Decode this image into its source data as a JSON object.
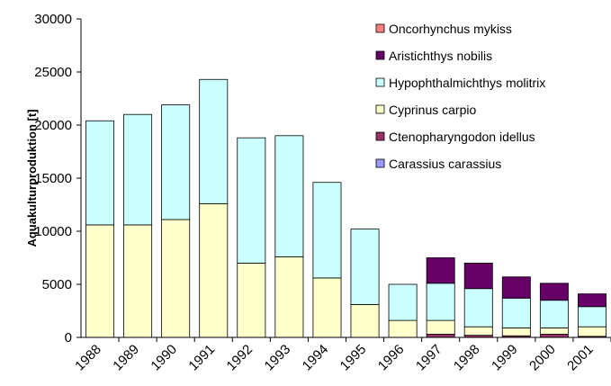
{
  "chart_data": {
    "type": "stacked_bar",
    "y_label": "Aquakulturproduktion [t]",
    "categories": [
      "1988",
      "1989",
      "1990",
      "1991",
      "1992",
      "1993",
      "1994",
      "1995",
      "1996",
      "1997",
      "1998",
      "1999",
      "2000",
      "2001"
    ],
    "series": [
      {
        "name": "Carassius carassius",
        "color": "#9999ff",
        "values": [
          0,
          0,
          0,
          0,
          0,
          0,
          0,
          0,
          0,
          0,
          0,
          0,
          0,
          0
        ]
      },
      {
        "name": "Ctenopharyngodon idellus",
        "color": "#993366",
        "values": [
          0,
          0,
          0,
          0,
          0,
          0,
          0,
          0,
          0,
          300,
          200,
          150,
          300,
          100
        ]
      },
      {
        "name": "Cyprinus carpio",
        "color": "#ffffcc",
        "values": [
          10600,
          10600,
          11100,
          12600,
          7000,
          7600,
          5600,
          3100,
          1600,
          1300,
          800,
          750,
          600,
          900
        ]
      },
      {
        "name": "Hypophthalmichthys molitrix",
        "color": "#ccffff",
        "values": [
          9800,
          10400,
          10800,
          11700,
          11800,
          11400,
          9000,
          7100,
          3400,
          3500,
          3600,
          2800,
          2600,
          1900
        ]
      },
      {
        "name": "Aristichthys nobilis",
        "color": "#660066",
        "values": [
          0,
          0,
          0,
          0,
          0,
          0,
          0,
          0,
          0,
          2400,
          2400,
          2000,
          1600,
          1200
        ]
      },
      {
        "name": "Oncorhynchus mykiss",
        "color": "#ff8080",
        "values": [
          0,
          0,
          0,
          0,
          0,
          0,
          0,
          0,
          0,
          0,
          0,
          0,
          0,
          0
        ]
      }
    ],
    "ylim": [
      0,
      30000
    ],
    "yticks": [
      0,
      5000,
      10000,
      15000,
      20000,
      25000,
      30000
    ]
  }
}
